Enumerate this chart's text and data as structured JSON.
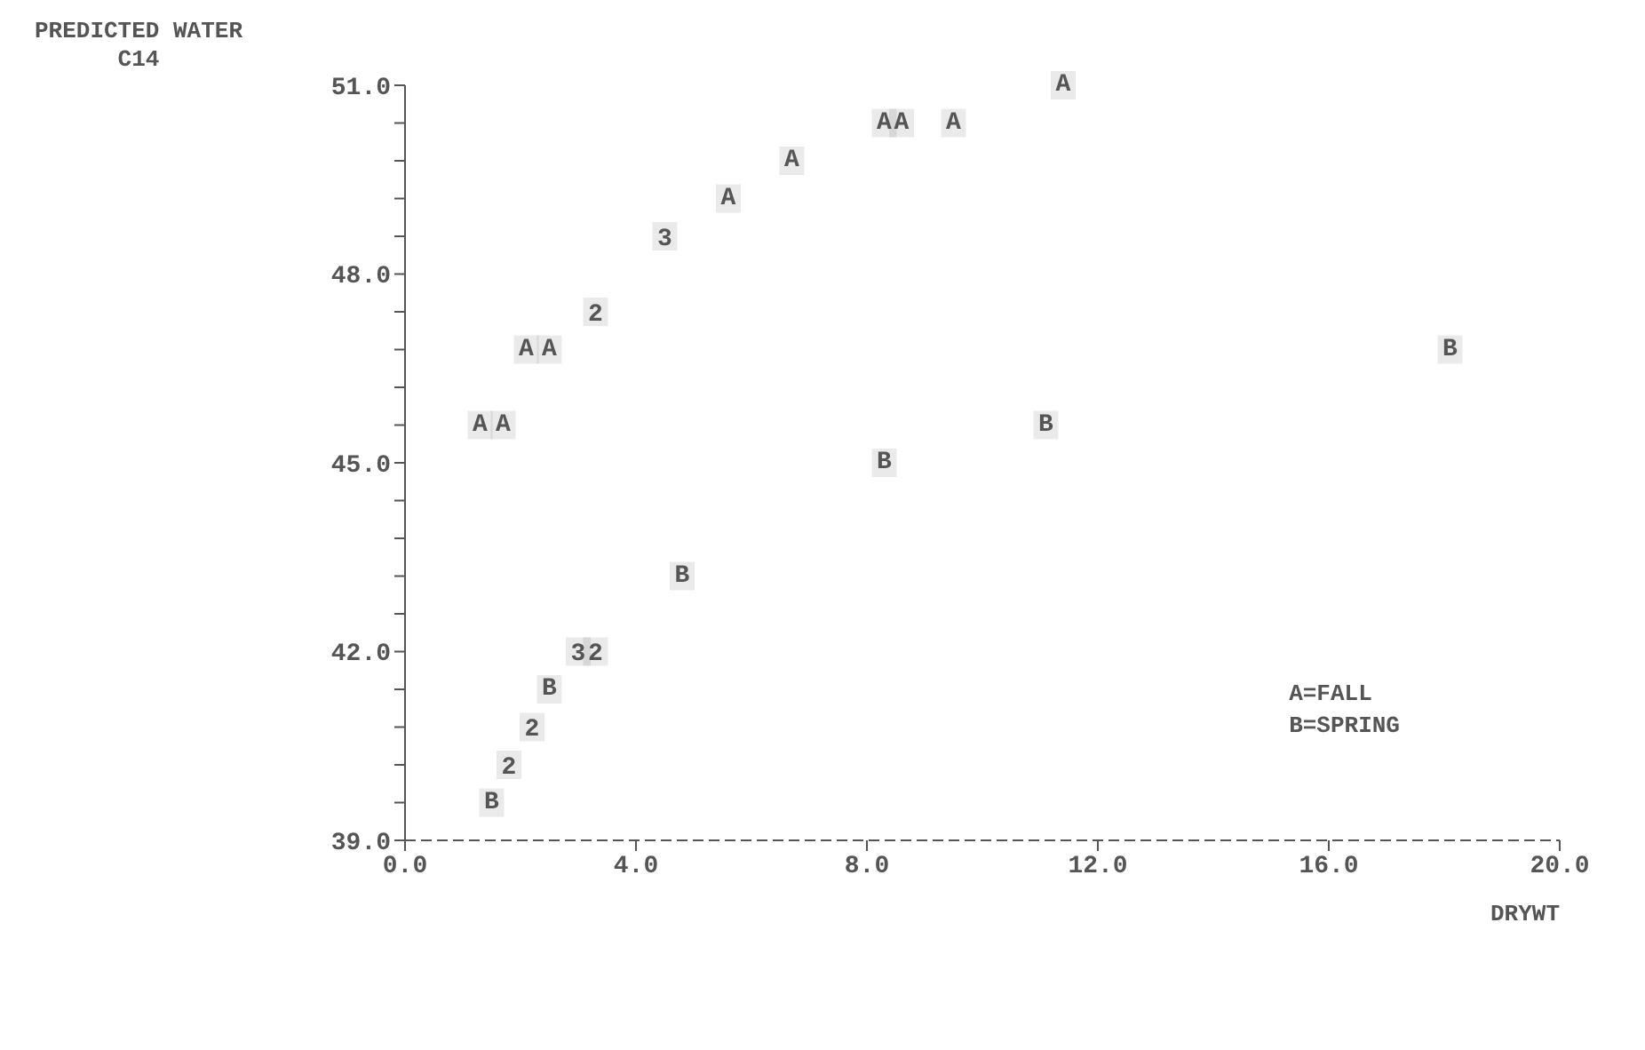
{
  "chart_data": {
    "type": "scatter",
    "ylabel": "PREDICTED WATER C14",
    "xlabel": "DRYWT",
    "xlim": [
      0,
      20
    ],
    "ylim": [
      39,
      51
    ],
    "xticks": [
      {
        "value": 0,
        "label": "0.0"
      },
      {
        "value": 4,
        "label": "4.0"
      },
      {
        "value": 8,
        "label": "8.0"
      },
      {
        "value": 12,
        "label": "12.0"
      },
      {
        "value": 16,
        "label": "16.0"
      },
      {
        "value": 20,
        "label": "20.0"
      }
    ],
    "yticks": [
      {
        "value": 39,
        "label": "39.0"
      },
      {
        "value": 39.6,
        "label": null
      },
      {
        "value": 40.2,
        "label": null
      },
      {
        "value": 40.8,
        "label": null
      },
      {
        "value": 41.4,
        "label": null
      },
      {
        "value": 42,
        "label": "42.0"
      },
      {
        "value": 42.6,
        "label": null
      },
      {
        "value": 43.2,
        "label": null
      },
      {
        "value": 43.8,
        "label": null
      },
      {
        "value": 44.4,
        "label": null
      },
      {
        "value": 45,
        "label": "45.0"
      },
      {
        "value": 45.6,
        "label": null
      },
      {
        "value": 46.2,
        "label": null
      },
      {
        "value": 46.8,
        "label": null
      },
      {
        "value": 47.4,
        "label": null
      },
      {
        "value": 48,
        "label": "48.0"
      },
      {
        "value": 48.6,
        "label": null
      },
      {
        "value": 49.2,
        "label": null
      },
      {
        "value": 49.8,
        "label": null
      },
      {
        "value": 50.4,
        "label": null
      },
      {
        "value": 51,
        "label": "51.0"
      }
    ],
    "grid": false,
    "annotations": [
      "A=FALL",
      "B=SPRING",
      {
        "text": "3",
        "x": 4.5,
        "y": 48.6
      },
      {
        "text": "2",
        "x": 3.3,
        "y": 47.4
      },
      {
        "text": "3",
        "x": 3.0,
        "y": 42.0
      },
      {
        "text": "2",
        "x": 3.3,
        "y": 42.0
      },
      {
        "text": "2",
        "x": 2.2,
        "y": 40.8
      },
      {
        "text": "2",
        "x": 1.8,
        "y": 40.2
      }
    ],
    "series": [
      {
        "color": "#555555",
        "x": [
          11.4,
          8.3,
          8.6,
          9.5,
          6.7,
          5.6,
          2.1,
          2.5,
          1.3,
          1.7
        ],
        "values": [
          51.0,
          50.4,
          50.4,
          50.4,
          49.8,
          49.2,
          46.8,
          46.8,
          45.6,
          45.6
        ],
        "value_labels": [
          "A",
          "A",
          "A",
          "A",
          "A",
          "A",
          "A",
          "A",
          "A",
          "A"
        ]
      },
      {
        "color": "#555555",
        "x": [
          18.1,
          11.1,
          8.3,
          4.8,
          2.5,
          1.5
        ],
        "values": [
          46.8,
          45.6,
          45.0,
          43.2,
          41.4,
          39.6
        ],
        "value_labels": [
          "B",
          "B",
          "B",
          "B",
          "B",
          "B"
        ]
      },
      {
        "color": "#555555",
        "x": [
          4.5,
          3.3,
          3.0,
          3.3,
          2.2,
          1.8
        ],
        "values": [
          48.6,
          47.4,
          42.0,
          42.0,
          40.8,
          40.2
        ]
      }
    ]
  }
}
